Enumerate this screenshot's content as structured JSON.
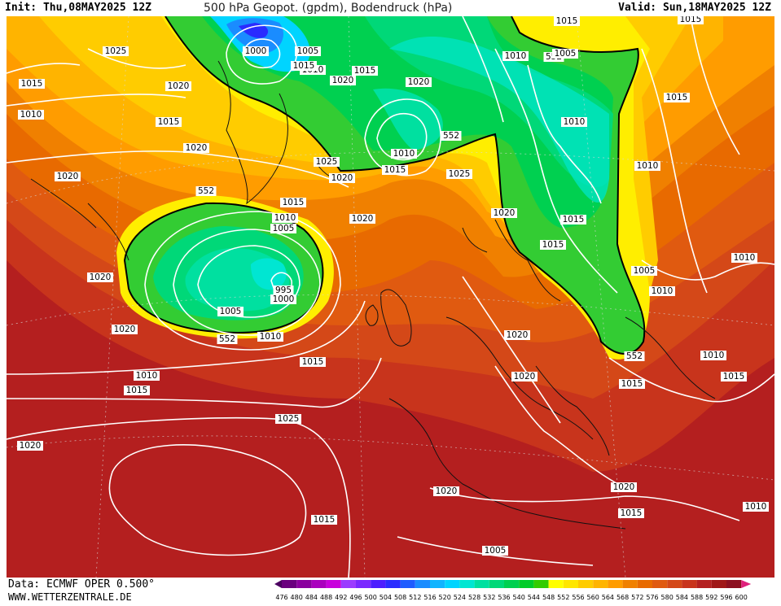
{
  "header": {
    "init_label": "Init: Thu,08MAY2025 12Z",
    "title": "500 hPa Geopot. (gpdm), Bodendruck (hPa)",
    "valid_label": "Valid: Sun,18MAY2025 12Z"
  },
  "footer": {
    "data_source": "Data: ECMWF OPER 0.500°",
    "website": "WWW.WETTERZENTRALE.DE"
  },
  "legend": {
    "values": [
      "476",
      "480",
      "484",
      "488",
      "492",
      "496",
      "500",
      "504",
      "508",
      "512",
      "516",
      "520",
      "524",
      "528",
      "532",
      "536",
      "540",
      "544",
      "548",
      "552",
      "556",
      "560",
      "564",
      "568",
      "572",
      "576",
      "580",
      "584",
      "588",
      "592",
      "596",
      "600"
    ],
    "colors": [
      "#4b0060",
      "#6a007e",
      "#8a009e",
      "#aa00be",
      "#c800dc",
      "#9b3bff",
      "#7a28ff",
      "#4d1dff",
      "#2a2bff",
      "#1f5cff",
      "#1a8cff",
      "#10b4ff",
      "#00d4ff",
      "#00e6d2",
      "#00e0a0",
      "#00d878",
      "#00d050",
      "#00cc28",
      "#33cc00",
      "#ffff00",
      "#ffe600",
      "#ffcc00",
      "#ffb400",
      "#ff9c00",
      "#f08000",
      "#e86a00",
      "#e05a10",
      "#d44818",
      "#c8341c",
      "#b42020",
      "#a01818",
      "#8c1020",
      "#e0207c"
    ]
  },
  "map": {
    "geopotential_552_labels": [
      "552",
      "552",
      "552",
      "552",
      "552",
      "552"
    ],
    "pressure_labels": [
      "1025",
      "1015",
      "1010",
      "1020",
      "1015",
      "1020",
      "1020",
      "1020",
      "1020",
      "1015",
      "1015",
      "1010",
      "1015",
      "1025",
      "1020",
      "1025",
      "1015",
      "1000",
      "1005",
      "1010",
      "1020",
      "1015",
      "1020",
      "1010",
      "1015",
      "1015",
      "1020",
      "1010",
      "1005",
      "1000",
      "995",
      "1005",
      "1010",
      "1020",
      "1005",
      "1010",
      "1015",
      "1015",
      "1010",
      "1005",
      "1015",
      "1025",
      "1020",
      "1020",
      "1020",
      "1010",
      "1020",
      "1015",
      "1005",
      "1010",
      "1010",
      "1015",
      "1010",
      "1015",
      "1015",
      "1010",
      "1015",
      "1020",
      "1015",
      "1010",
      "1020",
      "1015",
      "1025",
      "1010",
      "1010",
      "1005",
      "1005",
      "1015"
    ]
  }
}
